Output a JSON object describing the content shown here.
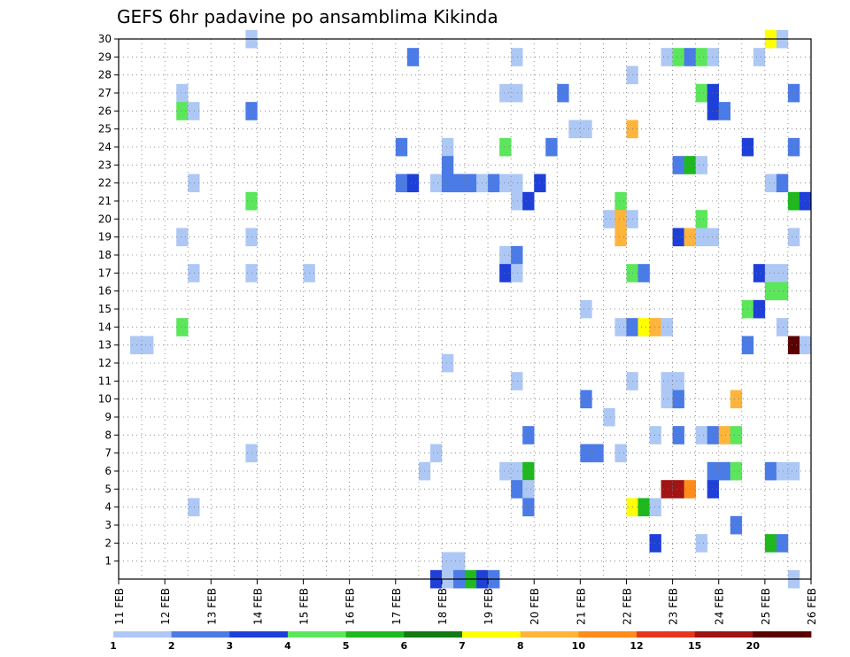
{
  "chart_data": {
    "type": "heatmap",
    "title": "GEFS 6hr padavine po ansamblima Kikinda",
    "xlabel": "",
    "ylabel": "",
    "x_tick_labels": [
      "11 FEB",
      "12 FEB",
      "13 FEB",
      "14 FEB",
      "15 FEB",
      "16 FEB",
      "17 FEB",
      "18 FEB",
      "19 FEB",
      "20 FEB",
      "21 FEB",
      "22 FEB",
      "23 FEB",
      "24 FEB",
      "25 FEB",
      "26 FEB"
    ],
    "y_tick_labels": [
      "1",
      "2",
      "3",
      "4",
      "5",
      "6",
      "7",
      "8",
      "9",
      "10",
      "11",
      "12",
      "13",
      "14",
      "15",
      "16",
      "17",
      "18",
      "19",
      "20",
      "21",
      "22",
      "23",
      "24",
      "25",
      "26",
      "27",
      "28",
      "29",
      "30"
    ],
    "x_range_days": [
      11,
      26
    ],
    "y_range": [
      0,
      30
    ],
    "time_step_hours": 6,
    "grid": true,
    "legend": {
      "placement": "bottom",
      "breaks": [
        "1",
        "2",
        "3",
        "4",
        "5",
        "6",
        "7",
        "8",
        "10",
        "12",
        "15",
        "20"
      ],
      "colors": [
        "#aec8f5",
        "#4b7be6",
        "#1e3fd8",
        "#5ce65c",
        "#1fb81f",
        "#117a11",
        "#ffff00",
        "#ffb43c",
        "#ff8c1a",
        "#e6371e",
        "#a01414",
        "#5a0000"
      ]
    },
    "cells": [
      {
        "day": 13.75,
        "member": 30,
        "value": 1.5
      },
      {
        "day": 25.0,
        "member": 30,
        "value": 7.5
      },
      {
        "day": 25.25,
        "member": 30,
        "value": 1.5
      },
      {
        "day": 17.25,
        "member": 29,
        "value": 2.5
      },
      {
        "day": 19.5,
        "member": 29,
        "value": 1.5
      },
      {
        "day": 22.75,
        "member": 29,
        "value": 1.5
      },
      {
        "day": 23.0,
        "member": 29,
        "value": 4.5
      },
      {
        "day": 23.25,
        "member": 29,
        "value": 2.5
      },
      {
        "day": 23.5,
        "member": 29,
        "value": 4.5
      },
      {
        "day": 23.75,
        "member": 29,
        "value": 1.5
      },
      {
        "day": 24.75,
        "member": 29,
        "value": 1.5
      },
      {
        "day": 22.0,
        "member": 28,
        "value": 1.5
      },
      {
        "day": 12.25,
        "member": 27,
        "value": 1.5
      },
      {
        "day": 19.25,
        "member": 27,
        "value": 1.5
      },
      {
        "day": 19.5,
        "member": 27,
        "value": 1.5
      },
      {
        "day": 20.5,
        "member": 27,
        "value": 2.5
      },
      {
        "day": 23.5,
        "member": 27,
        "value": 4.5
      },
      {
        "day": 23.75,
        "member": 27,
        "value": 3.5
      },
      {
        "day": 25.5,
        "member": 27,
        "value": 2.5
      },
      {
        "day": 12.25,
        "member": 26,
        "value": 4.5
      },
      {
        "day": 12.5,
        "member": 26,
        "value": 1.5
      },
      {
        "day": 13.75,
        "member": 26,
        "value": 2.5
      },
      {
        "day": 23.75,
        "member": 26,
        "value": 3.5
      },
      {
        "day": 24.0,
        "member": 26,
        "value": 2.5
      },
      {
        "day": 20.75,
        "member": 25,
        "value": 1.5
      },
      {
        "day": 21.0,
        "member": 25,
        "value": 1.5
      },
      {
        "day": 22.0,
        "member": 25,
        "value": 9
      },
      {
        "day": 17.0,
        "member": 24,
        "value": 2.5
      },
      {
        "day": 18.0,
        "member": 24,
        "value": 1.5
      },
      {
        "day": 19.25,
        "member": 24,
        "value": 4.5
      },
      {
        "day": 20.25,
        "member": 24,
        "value": 2.5
      },
      {
        "day": 24.5,
        "member": 24,
        "value": 3.5
      },
      {
        "day": 25.5,
        "member": 24,
        "value": 2.5
      },
      {
        "day": 18.0,
        "member": 23,
        "value": 2.5
      },
      {
        "day": 23.0,
        "member": 23,
        "value": 2.5
      },
      {
        "day": 23.25,
        "member": 23,
        "value": 5.5
      },
      {
        "day": 23.5,
        "member": 23,
        "value": 1.5
      },
      {
        "day": 12.5,
        "member": 22,
        "value": 1.5
      },
      {
        "day": 17.0,
        "member": 22,
        "value": 2.5
      },
      {
        "day": 17.25,
        "member": 22,
        "value": 3.5
      },
      {
        "day": 17.75,
        "member": 22,
        "value": 1.5
      },
      {
        "day": 18.0,
        "member": 22,
        "value": 2.5
      },
      {
        "day": 18.25,
        "member": 22,
        "value": 2.5
      },
      {
        "day": 18.5,
        "member": 22,
        "value": 2.5
      },
      {
        "day": 18.75,
        "member": 22,
        "value": 1.5
      },
      {
        "day": 19.0,
        "member": 22,
        "value": 2.5
      },
      {
        "day": 19.25,
        "member": 22,
        "value": 1.5
      },
      {
        "day": 19.5,
        "member": 22,
        "value": 1.5
      },
      {
        "day": 20.0,
        "member": 22,
        "value": 3.5
      },
      {
        "day": 25.0,
        "member": 22,
        "value": 1.5
      },
      {
        "day": 25.25,
        "member": 22,
        "value": 2.5
      },
      {
        "day": 13.75,
        "member": 21,
        "value": 4.5
      },
      {
        "day": 19.5,
        "member": 21,
        "value": 1.5
      },
      {
        "day": 19.75,
        "member": 21,
        "value": 3.5
      },
      {
        "day": 21.75,
        "member": 21,
        "value": 4.5
      },
      {
        "day": 25.5,
        "member": 21,
        "value": 5.5
      },
      {
        "day": 25.75,
        "member": 21,
        "value": 3.5
      },
      {
        "day": 21.5,
        "member": 20,
        "value": 1.5
      },
      {
        "day": 21.75,
        "member": 20,
        "value": 9
      },
      {
        "day": 22.0,
        "member": 20,
        "value": 1.5
      },
      {
        "day": 23.5,
        "member": 20,
        "value": 4.5
      },
      {
        "day": 12.25,
        "member": 19,
        "value": 1.5
      },
      {
        "day": 13.75,
        "member": 19,
        "value": 1.5
      },
      {
        "day": 21.75,
        "member": 19,
        "value": 9
      },
      {
        "day": 23.0,
        "member": 19,
        "value": 3.5
      },
      {
        "day": 23.25,
        "member": 19,
        "value": 9
      },
      {
        "day": 23.5,
        "member": 19,
        "value": 1.5
      },
      {
        "day": 23.75,
        "member": 19,
        "value": 1.5
      },
      {
        "day": 25.5,
        "member": 19,
        "value": 1.5
      },
      {
        "day": 19.25,
        "member": 18,
        "value": 1.5
      },
      {
        "day": 19.5,
        "member": 18,
        "value": 2.5
      },
      {
        "day": 12.5,
        "member": 17,
        "value": 1.5
      },
      {
        "day": 13.75,
        "member": 17,
        "value": 1.5
      },
      {
        "day": 15.0,
        "member": 17,
        "value": 1.5
      },
      {
        "day": 19.25,
        "member": 17,
        "value": 3.5
      },
      {
        "day": 19.5,
        "member": 17,
        "value": 1.5
      },
      {
        "day": 22.0,
        "member": 17,
        "value": 4.5
      },
      {
        "day": 22.25,
        "member": 17,
        "value": 2.5
      },
      {
        "day": 24.75,
        "member": 17,
        "value": 3.5
      },
      {
        "day": 25.0,
        "member": 17,
        "value": 1.5
      },
      {
        "day": 25.25,
        "member": 17,
        "value": 1.5
      },
      {
        "day": 25.0,
        "member": 16,
        "value": 4.5
      },
      {
        "day": 25.25,
        "member": 16,
        "value": 4.5
      },
      {
        "day": 21.0,
        "member": 15,
        "value": 1.5
      },
      {
        "day": 24.5,
        "member": 15,
        "value": 4.5
      },
      {
        "day": 24.75,
        "member": 15,
        "value": 3.5
      },
      {
        "day": 12.25,
        "member": 14,
        "value": 4.5
      },
      {
        "day": 21.75,
        "member": 14,
        "value": 1.5
      },
      {
        "day": 22.0,
        "member": 14,
        "value": 2.5
      },
      {
        "day": 22.25,
        "member": 14,
        "value": 7.5
      },
      {
        "day": 22.5,
        "member": 14,
        "value": 9
      },
      {
        "day": 22.75,
        "member": 14,
        "value": 1.5
      },
      {
        "day": 25.25,
        "member": 14,
        "value": 1.5
      },
      {
        "day": 11.25,
        "member": 13,
        "value": 1.5
      },
      {
        "day": 11.5,
        "member": 13,
        "value": 1.5
      },
      {
        "day": 24.5,
        "member": 13,
        "value": 2.5
      },
      {
        "day": 25.5,
        "member": 13,
        "value": 21
      },
      {
        "day": 25.75,
        "member": 13,
        "value": 1.5
      },
      {
        "day": 18.0,
        "member": 12,
        "value": 1.5
      },
      {
        "day": 19.5,
        "member": 11,
        "value": 1.5
      },
      {
        "day": 22.0,
        "member": 11,
        "value": 1.5
      },
      {
        "day": 22.75,
        "member": 11,
        "value": 1.5
      },
      {
        "day": 23.0,
        "member": 11,
        "value": 1.5
      },
      {
        "day": 21.0,
        "member": 10,
        "value": 2.5
      },
      {
        "day": 22.75,
        "member": 10,
        "value": 1.5
      },
      {
        "day": 23.0,
        "member": 10,
        "value": 2.5
      },
      {
        "day": 24.25,
        "member": 10,
        "value": 9
      },
      {
        "day": 21.5,
        "member": 9,
        "value": 1.5
      },
      {
        "day": 19.75,
        "member": 8,
        "value": 2.5
      },
      {
        "day": 22.5,
        "member": 8,
        "value": 1.5
      },
      {
        "day": 23.0,
        "member": 8,
        "value": 2.5
      },
      {
        "day": 23.5,
        "member": 8,
        "value": 1.5
      },
      {
        "day": 23.75,
        "member": 8,
        "value": 2.5
      },
      {
        "day": 24.0,
        "member": 8,
        "value": 9
      },
      {
        "day": 24.25,
        "member": 8,
        "value": 4.5
      },
      {
        "day": 13.75,
        "member": 7,
        "value": 1.5
      },
      {
        "day": 17.75,
        "member": 7,
        "value": 1.5
      },
      {
        "day": 21.0,
        "member": 7,
        "value": 2.5
      },
      {
        "day": 21.25,
        "member": 7,
        "value": 2.5
      },
      {
        "day": 21.75,
        "member": 7,
        "value": 1.5
      },
      {
        "day": 17.5,
        "member": 6,
        "value": 1.5
      },
      {
        "day": 19.25,
        "member": 6,
        "value": 1.5
      },
      {
        "day": 19.5,
        "member": 6,
        "value": 1.5
      },
      {
        "day": 19.75,
        "member": 6,
        "value": 5.5
      },
      {
        "day": 23.75,
        "member": 6,
        "value": 2.5
      },
      {
        "day": 24.0,
        "member": 6,
        "value": 2.5
      },
      {
        "day": 24.25,
        "member": 6,
        "value": 4.5
      },
      {
        "day": 25.0,
        "member": 6,
        "value": 2.5
      },
      {
        "day": 25.25,
        "member": 6,
        "value": 1.5
      },
      {
        "day": 25.5,
        "member": 6,
        "value": 1.5
      },
      {
        "day": 19.5,
        "member": 5,
        "value": 2.5
      },
      {
        "day": 19.75,
        "member": 5,
        "value": 1.5
      },
      {
        "day": 22.75,
        "member": 5,
        "value": 17
      },
      {
        "day": 23.0,
        "member": 5,
        "value": 17
      },
      {
        "day": 23.25,
        "member": 5,
        "value": 11
      },
      {
        "day": 23.75,
        "member": 5,
        "value": 3.5
      },
      {
        "day": 12.5,
        "member": 4,
        "value": 1.5
      },
      {
        "day": 19.75,
        "member": 4,
        "value": 2.5
      },
      {
        "day": 22.0,
        "member": 4,
        "value": 7.5
      },
      {
        "day": 22.25,
        "member": 4,
        "value": 5.5
      },
      {
        "day": 22.5,
        "member": 4,
        "value": 1.5
      },
      {
        "day": 24.25,
        "member": 3,
        "value": 2.5
      },
      {
        "day": 22.5,
        "member": 2,
        "value": 3.5
      },
      {
        "day": 23.5,
        "member": 2,
        "value": 1.5
      },
      {
        "day": 25.0,
        "member": 2,
        "value": 5.5
      },
      {
        "day": 25.25,
        "member": 2,
        "value": 2.5
      },
      {
        "day": 18.0,
        "member": 1,
        "value": 1.5
      },
      {
        "day": 18.25,
        "member": 1,
        "value": 1.5
      },
      {
        "day": 17.75,
        "member": 0,
        "value": 3.5
      },
      {
        "day": 18.0,
        "member": 0,
        "value": 1.5
      },
      {
        "day": 18.25,
        "member": 0,
        "value": 2.5
      },
      {
        "day": 18.5,
        "member": 0,
        "value": 5.5
      },
      {
        "day": 18.75,
        "member": 0,
        "value": 3.5
      },
      {
        "day": 19.0,
        "member": 0,
        "value": 2.5
      },
      {
        "day": 25.5,
        "member": 0,
        "value": 1.5
      }
    ]
  }
}
